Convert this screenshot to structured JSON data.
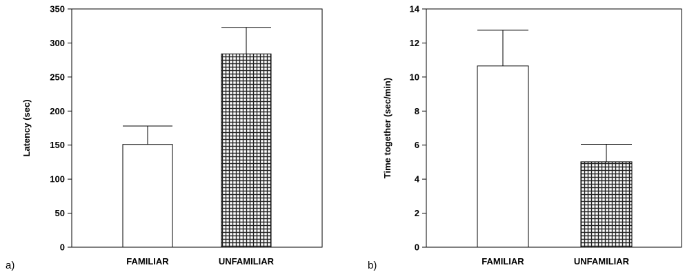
{
  "chart_data": [
    {
      "type": "bar",
      "panel_label": "a)",
      "categories": [
        "FAMILIAR",
        "UNFAMILIAR"
      ],
      "values": [
        151,
        284
      ],
      "error_upper": [
        178,
        323
      ],
      "ylabel": "Latency (sec)",
      "ylim": [
        0,
        350
      ],
      "yticks": [
        0,
        50,
        100,
        150,
        200,
        250,
        300,
        350
      ],
      "bar_fills": [
        "plain",
        "crosshatch"
      ],
      "grid": false,
      "legend": "none"
    },
    {
      "type": "bar",
      "panel_label": "b)",
      "categories": [
        "FAMILIAR",
        "UNFAMILIAR"
      ],
      "values": [
        10.65,
        5.02
      ],
      "error_upper": [
        12.75,
        6.05
      ],
      "ylabel": "Time together (sec/min)",
      "ylim": [
        0,
        14
      ],
      "yticks": [
        0,
        2,
        4,
        6,
        8,
        10,
        12,
        14
      ],
      "bar_fills": [
        "plain",
        "crosshatch"
      ],
      "grid": false,
      "legend": "none"
    }
  ]
}
